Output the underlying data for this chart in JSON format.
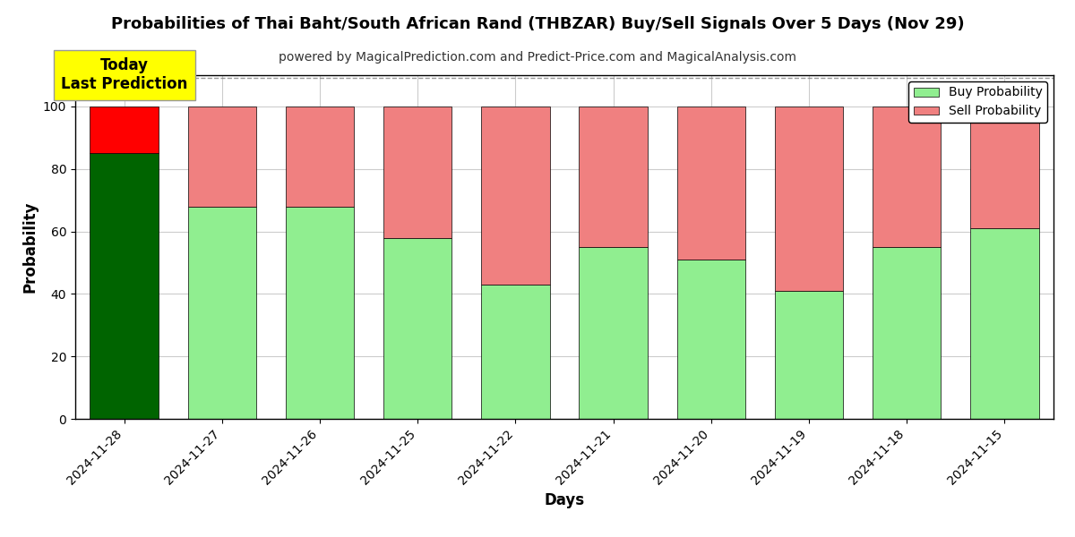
{
  "title": "Probabilities of Thai Baht/South African Rand (THBZAR) Buy/Sell Signals Over 5 Days (Nov 29)",
  "subtitle": "powered by MagicalPrediction.com and Predict-Price.com and MagicalAnalysis.com",
  "xlabel": "Days",
  "ylabel": "Probability",
  "categories": [
    "2024-11-28",
    "2024-11-27",
    "2024-11-26",
    "2024-11-25",
    "2024-11-22",
    "2024-11-21",
    "2024-11-20",
    "2024-11-19",
    "2024-11-18",
    "2024-11-15"
  ],
  "buy_values": [
    85,
    68,
    68,
    58,
    43,
    55,
    51,
    41,
    55,
    61
  ],
  "sell_values": [
    15,
    32,
    32,
    42,
    57,
    45,
    49,
    59,
    45,
    39
  ],
  "today_index": 0,
  "buy_color_today": "#006400",
  "sell_color_today": "#FF0000",
  "buy_color_normal": "#90EE90",
  "sell_color_normal": "#F08080",
  "bar_edge_color": "#000000",
  "today_annotation_text": "Today\nLast Prediction",
  "today_annotation_bg": "#FFFF00",
  "legend_buy": "Buy Probability",
  "legend_sell": "Sell Probability",
  "ylim": [
    0,
    110
  ],
  "yticks": [
    0,
    20,
    40,
    60,
    80,
    100
  ],
  "dashed_line_y": 109,
  "background_color": "#ffffff",
  "grid_color": "#cccccc"
}
